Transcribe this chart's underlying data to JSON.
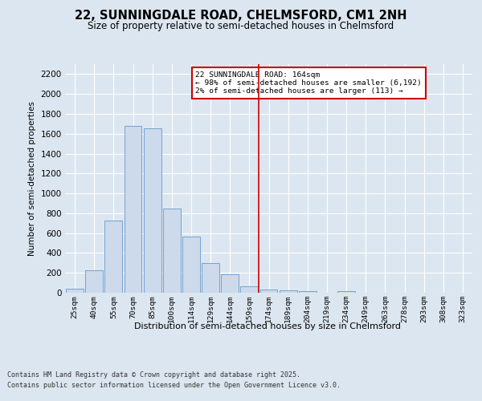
{
  "title": "22, SUNNINGDALE ROAD, CHELMSFORD, CM1 2NH",
  "subtitle": "Size of property relative to semi-detached houses in Chelmsford",
  "xlabel": "Distribution of semi-detached houses by size in Chelmsford",
  "ylabel": "Number of semi-detached properties",
  "categories": [
    "25sqm",
    "40sqm",
    "55sqm",
    "70sqm",
    "85sqm",
    "100sqm",
    "114sqm",
    "129sqm",
    "144sqm",
    "159sqm",
    "174sqm",
    "189sqm",
    "204sqm",
    "219sqm",
    "234sqm",
    "249sqm",
    "263sqm",
    "278sqm",
    "293sqm",
    "308sqm",
    "323sqm"
  ],
  "values": [
    40,
    225,
    730,
    1675,
    1655,
    845,
    565,
    300,
    185,
    65,
    35,
    25,
    20,
    0,
    15,
    0,
    0,
    0,
    0,
    0,
    0
  ],
  "bar_color": "#ccdaeb",
  "bar_edge_color": "#6699cc",
  "vline_color": "#cc0000",
  "vline_pos": 9.5,
  "annotation_title": "22 SUNNINGDALE ROAD: 164sqm",
  "annotation_line1": "← 98% of semi-detached houses are smaller (6,192)",
  "annotation_line2": "2% of semi-detached houses are larger (113) →",
  "annotation_box_color": "#cc0000",
  "ylim": [
    0,
    2300
  ],
  "yticks": [
    0,
    200,
    400,
    600,
    800,
    1000,
    1200,
    1400,
    1600,
    1800,
    2000,
    2200
  ],
  "background_color": "#dce6f0",
  "plot_background": "#dce6f0",
  "grid_color": "#ffffff",
  "footer_line1": "Contains HM Land Registry data © Crown copyright and database right 2025.",
  "footer_line2": "Contains public sector information licensed under the Open Government Licence v3.0."
}
